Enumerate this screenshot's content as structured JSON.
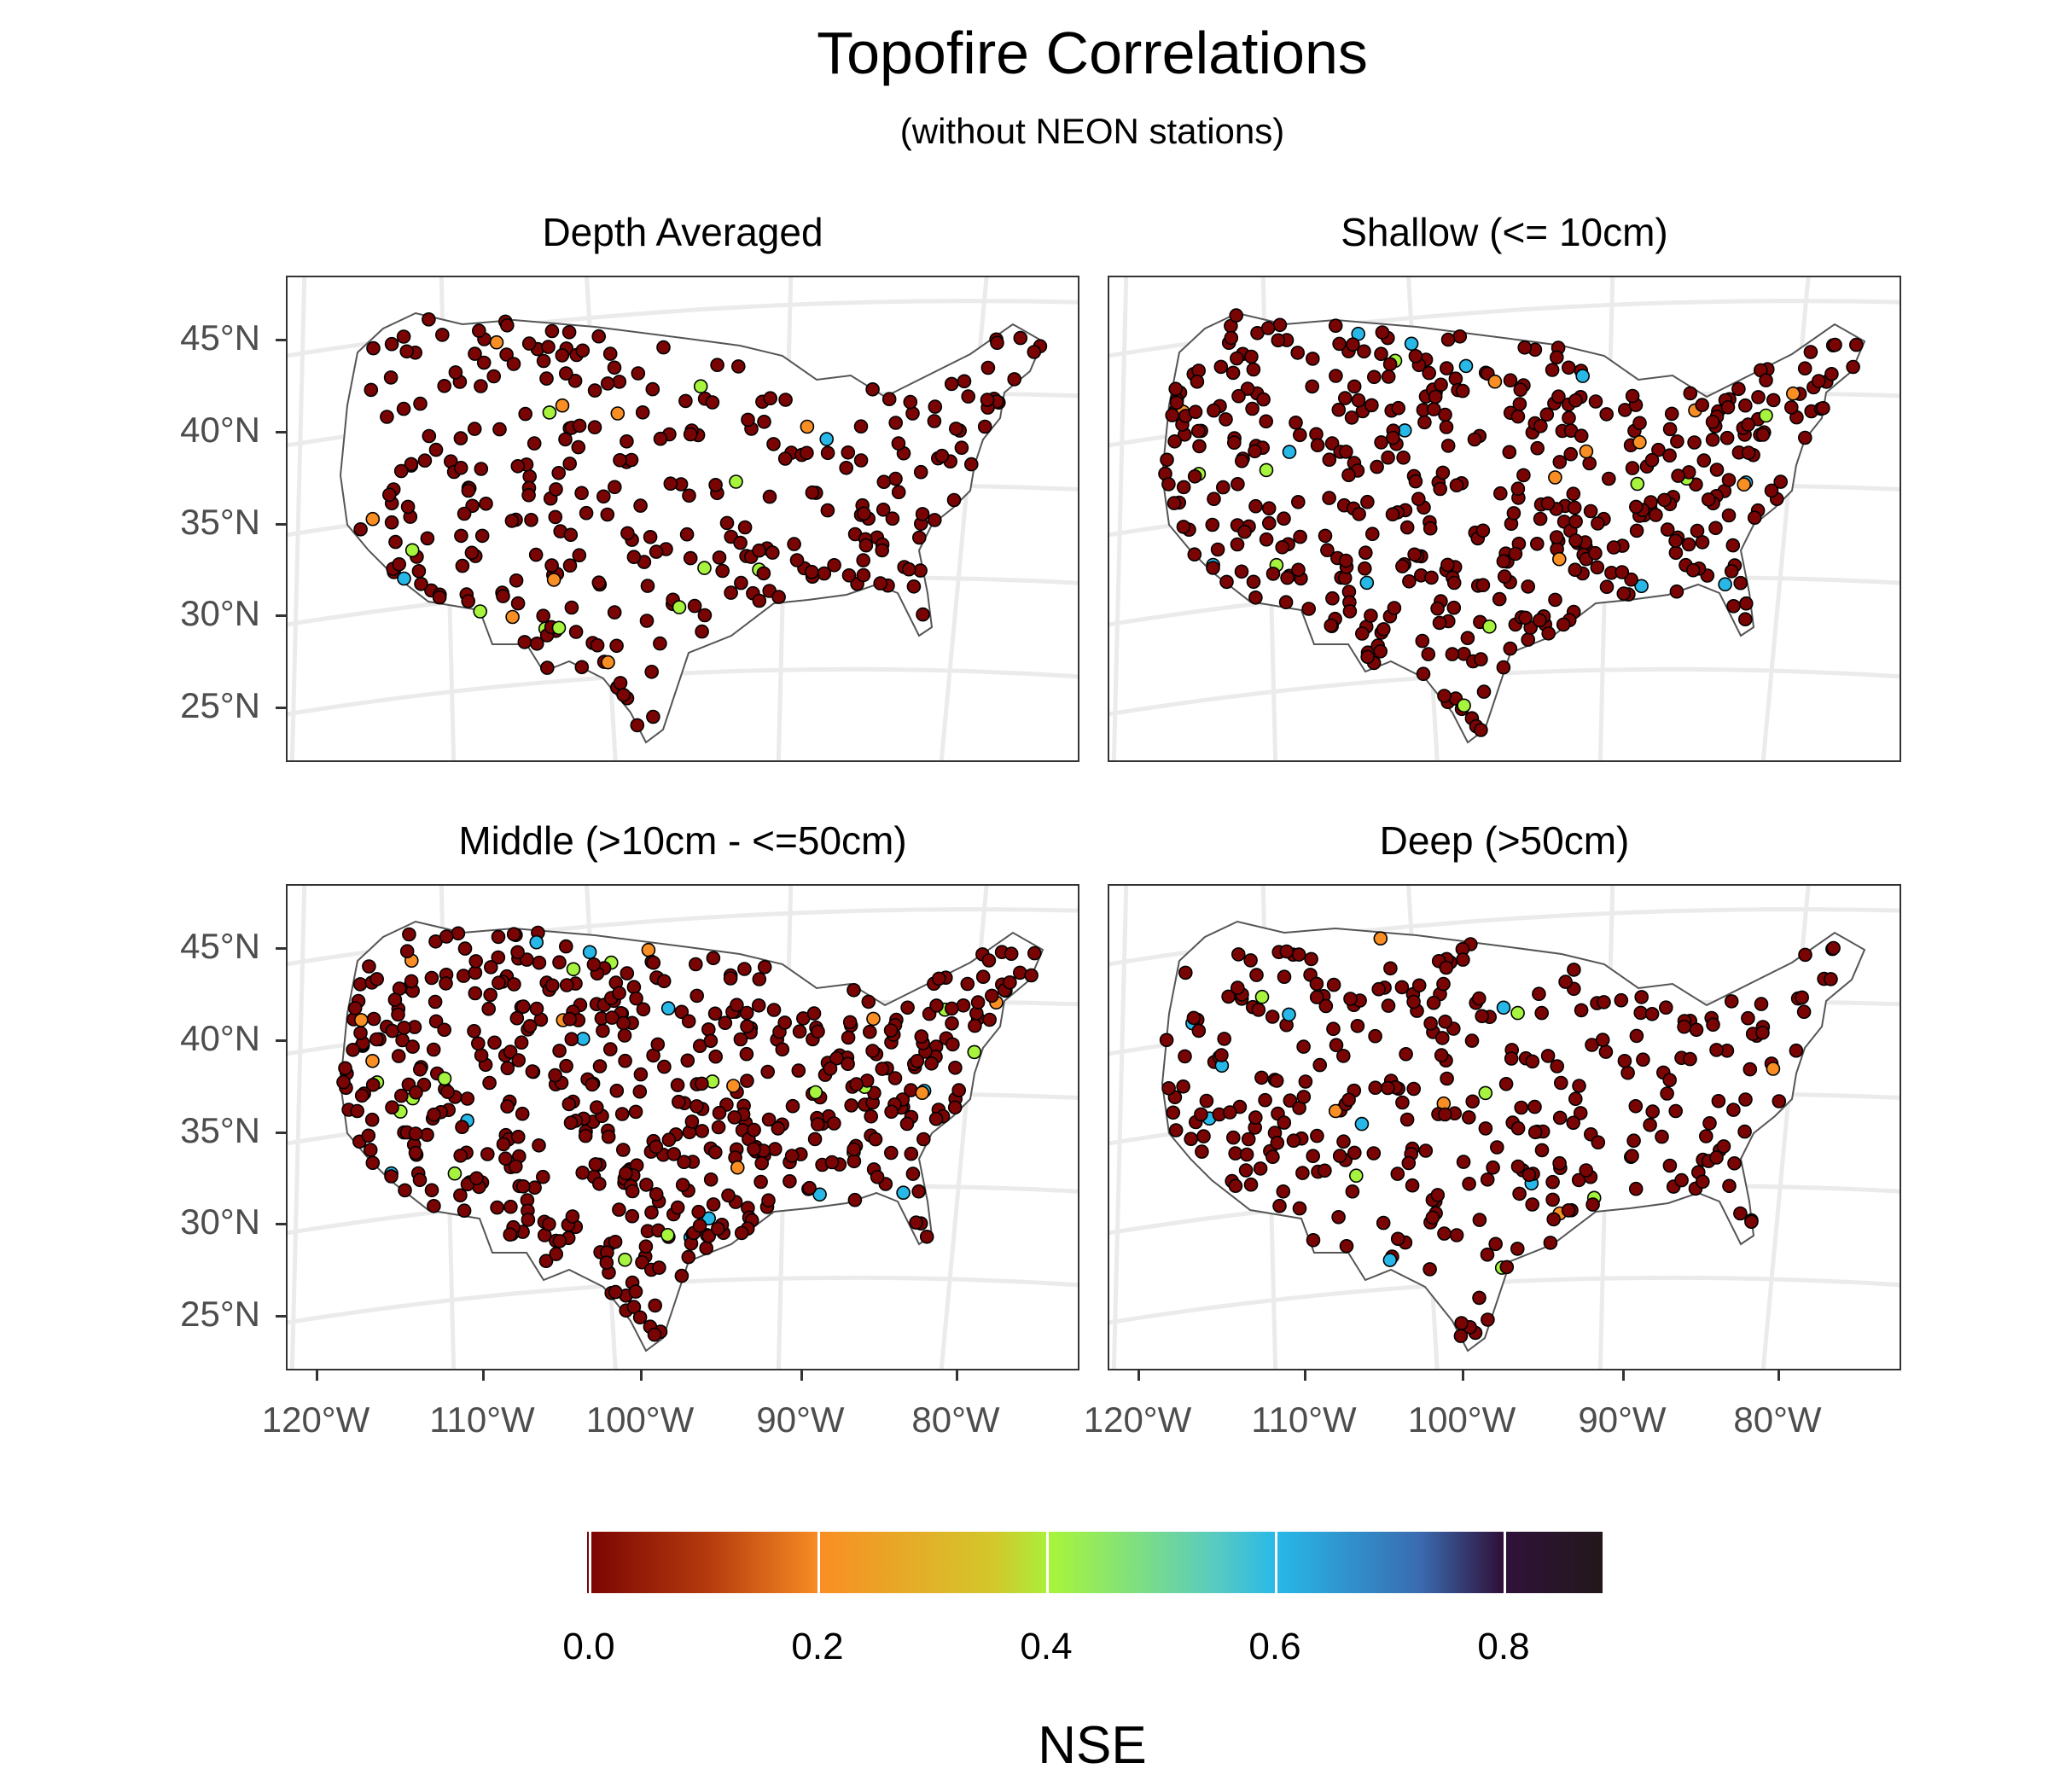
{
  "title": "Topofire Correlations",
  "subtitle": "(without NEON stations)",
  "panels": [
    {
      "label": "Depth Averaged"
    },
    {
      "label": "Shallow (<= 10cm)"
    },
    {
      "label": "Middle (>10cm - <=50cm)"
    },
    {
      "label": "Deep (>50cm)"
    }
  ],
  "axes": {
    "y_ticks": [
      "45°N",
      "40°N",
      "35°N",
      "30°N",
      "25°N"
    ],
    "x_ticks": [
      "120°W",
      "110°W",
      "100°W",
      "90°W",
      "80°W"
    ]
  },
  "legend": {
    "title": "NSE",
    "ticks": [
      "0.0",
      "0.2",
      "0.4",
      "0.6",
      "0.8"
    ],
    "colors": [
      "#7a0403",
      "#f98e24",
      "#a6f43d",
      "#27b8e8",
      "#30123b"
    ]
  },
  "map_data": {
    "station_fill_default": "#7a0403",
    "station_stroke": "#000000"
  }
}
